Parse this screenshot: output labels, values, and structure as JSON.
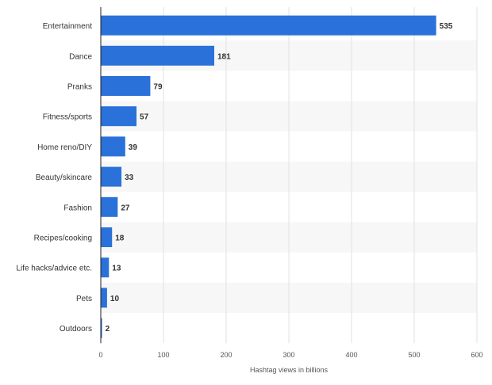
{
  "chart_data": {
    "type": "bar",
    "orientation": "horizontal",
    "categories": [
      "Entertainment",
      "Dance",
      "Pranks",
      "Fitness/sports",
      "Home reno/DIY",
      "Beauty/skincare",
      "Fashion",
      "Recipes/cooking",
      "Life hacks/advice etc.",
      "Pets",
      "Outdoors"
    ],
    "values": [
      535,
      181,
      79,
      57,
      39,
      33,
      27,
      18,
      13,
      10,
      2
    ],
    "value_labels": [
      "535",
      "181",
      "79",
      "57",
      "39",
      "33",
      "27",
      "18",
      "13",
      "10",
      "2"
    ],
    "xlabel": "Hashtag views in billions",
    "ylabel": "",
    "xlim": [
      0,
      600
    ],
    "xticks": [
      0,
      100,
      200,
      300,
      400,
      500,
      600
    ],
    "xtick_labels": [
      "0",
      "100",
      "200",
      "300",
      "400",
      "500",
      "600"
    ],
    "grid": true,
    "alternating_row_bands": true,
    "bar_color": "#2a72d9",
    "band_color": "#f7f7f7",
    "grid_color": "#e1e1e1"
  }
}
